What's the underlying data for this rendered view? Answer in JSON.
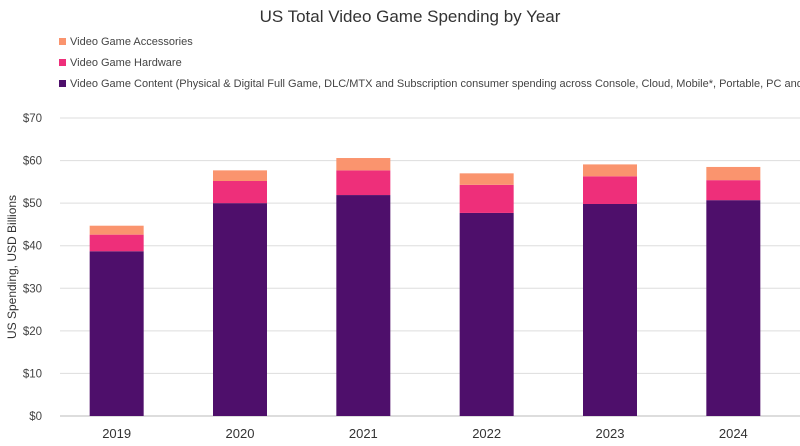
{
  "chart_data": {
    "type": "bar",
    "stacked": true,
    "title": "US Total Video Game Spending by Year",
    "xlabel": "",
    "ylabel": "US Spending, USD Billions",
    "ylim": [
      0,
      70
    ],
    "yticks": [
      "$0",
      "$10",
      "$20",
      "$30",
      "$40",
      "$50",
      "$60",
      "$70"
    ],
    "ytick_values": [
      0,
      10,
      20,
      30,
      40,
      50,
      60,
      70
    ],
    "grid": true,
    "legend_position": "top-left",
    "categories": [
      "2019",
      "2020",
      "2021",
      "2022",
      "2023",
      "2024"
    ],
    "series": [
      {
        "name": "Video Game Content (Physical & Digital Full Game, DLC/MTX and Subscription consumer spending across Console, Cloud, Mobile*, Portable, PC and VR platforms)",
        "color": "#4e0f6b",
        "values": [
          38.7,
          50.0,
          51.9,
          47.7,
          49.8,
          50.7
        ]
      },
      {
        "name": "Video Game Hardware",
        "color": "#ee2f7a",
        "values": [
          3.9,
          5.2,
          5.8,
          6.6,
          6.5,
          4.7
        ]
      },
      {
        "name": "Video Game Accessories",
        "color": "#fa946e",
        "values": [
          2.1,
          2.5,
          2.9,
          2.7,
          2.8,
          3.1
        ]
      }
    ],
    "legend_order": [
      2,
      1,
      0
    ]
  }
}
